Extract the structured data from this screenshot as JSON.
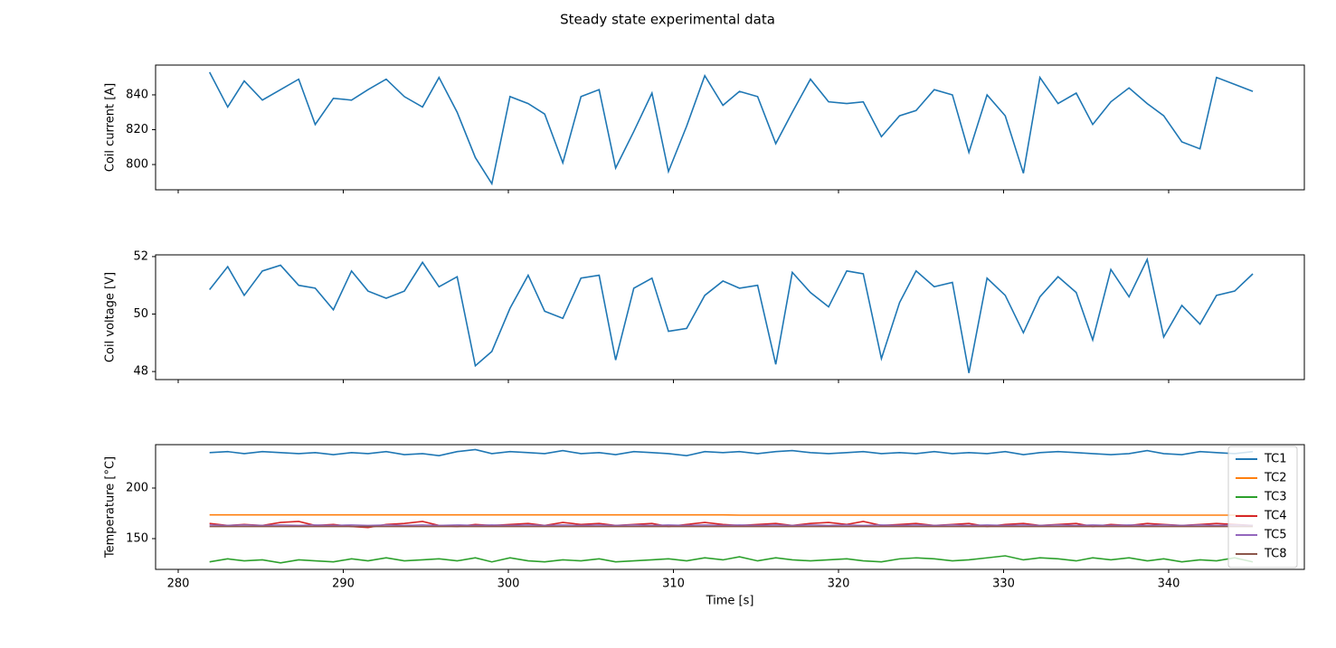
{
  "title": "Steady state experimental data",
  "chart_data": [
    {
      "type": "line",
      "ylabel": "Coil current [A]",
      "xticklabels": false,
      "x": [
        281.9,
        283.0,
        284.0,
        285.1,
        286.2,
        287.3,
        288.3,
        289.4,
        290.5,
        291.5,
        292.6,
        293.7,
        294.8,
        295.8,
        296.9,
        298.0,
        299.0,
        300.1,
        301.2,
        302.2,
        303.3,
        304.4,
        305.5,
        306.5,
        307.6,
        308.7,
        309.7,
        310.8,
        311.9,
        313.0,
        314.0,
        315.1,
        316.2,
        317.2,
        318.3,
        319.4,
        320.5,
        321.5,
        322.6,
        323.7,
        324.7,
        325.8,
        326.9,
        327.9,
        329.0,
        330.1,
        331.2,
        332.2,
        333.3,
        334.4,
        335.4,
        336.5,
        337.6,
        338.7,
        339.7,
        340.8,
        341.9,
        342.9,
        344.0,
        345.1
      ],
      "series": [
        {
          "name": "Coil current",
          "color": "#1f77b4",
          "values": [
            853,
            833,
            848,
            837,
            843,
            849,
            823,
            838,
            837,
            843,
            849,
            839,
            833,
            850,
            830,
            804,
            789,
            839,
            835,
            829,
            801,
            839,
            843,
            798,
            819,
            841,
            796,
            822,
            851,
            834,
            842,
            839,
            812,
            830,
            849,
            836,
            835,
            836,
            816,
            828,
            831,
            843,
            840,
            807,
            840,
            828,
            795,
            850,
            835,
            841,
            823,
            836,
            844,
            835,
            828,
            813,
            809,
            850,
            846,
            842
          ]
        }
      ],
      "xlim": [
        278.63,
        348.22
      ],
      "xticks": [
        280,
        290,
        300,
        310,
        320,
        330,
        340
      ],
      "ylim": [
        785.5,
        857.1
      ],
      "yticks": [
        800,
        820,
        840
      ]
    },
    {
      "type": "line",
      "ylabel": "Coil voltage [V]",
      "xticklabels": false,
      "x": [
        281.9,
        283.0,
        284.0,
        285.1,
        286.2,
        287.3,
        288.3,
        289.4,
        290.5,
        291.5,
        292.6,
        293.7,
        294.8,
        295.8,
        296.9,
        298.0,
        299.0,
        300.1,
        301.2,
        302.2,
        303.3,
        304.4,
        305.5,
        306.5,
        307.6,
        308.7,
        309.7,
        310.8,
        311.9,
        313.0,
        314.0,
        315.1,
        316.2,
        317.2,
        318.3,
        319.4,
        320.5,
        321.5,
        322.6,
        323.7,
        324.7,
        325.8,
        326.9,
        327.9,
        329.0,
        330.1,
        331.2,
        332.2,
        333.3,
        334.4,
        335.4,
        336.5,
        337.6,
        338.7,
        339.7,
        340.8,
        341.9,
        342.9,
        344.0,
        345.1
      ],
      "series": [
        {
          "name": "Coil voltage",
          "color": "#1f77b4",
          "values": [
            50.85,
            51.65,
            50.65,
            51.5,
            51.7,
            51.0,
            50.9,
            50.15,
            51.5,
            50.8,
            50.55,
            50.8,
            51.8,
            50.95,
            51.3,
            48.2,
            48.7,
            50.2,
            51.35,
            50.1,
            49.85,
            51.25,
            51.35,
            48.4,
            50.9,
            51.25,
            49.4,
            49.5,
            50.65,
            51.15,
            50.9,
            51.0,
            48.25,
            51.45,
            50.75,
            50.25,
            51.5,
            51.4,
            48.45,
            50.4,
            51.5,
            50.95,
            51.1,
            47.95,
            51.25,
            50.65,
            49.35,
            50.6,
            51.3,
            50.75,
            49.1,
            51.55,
            50.6,
            51.9,
            49.2,
            50.3,
            49.65,
            50.65,
            50.8,
            51.4
          ]
        }
      ],
      "xlim": [
        278.63,
        348.22
      ],
      "xticks": [
        280,
        290,
        300,
        310,
        320,
        330,
        340
      ],
      "ylim": [
        47.72,
        52.06
      ],
      "yticks": [
        48,
        50,
        52
      ]
    },
    {
      "type": "line",
      "ylabel": "Temperature [°C]",
      "xlabel": "Time [s]",
      "xticklabels": true,
      "legend": "center right",
      "x": [
        281.9,
        283.0,
        284.0,
        285.1,
        286.2,
        287.3,
        288.3,
        289.4,
        290.5,
        291.5,
        292.6,
        293.7,
        294.8,
        295.8,
        296.9,
        298.0,
        299.0,
        300.1,
        301.2,
        302.2,
        303.3,
        304.4,
        305.5,
        306.5,
        307.6,
        308.7,
        309.7,
        310.8,
        311.9,
        313.0,
        314.0,
        315.1,
        316.2,
        317.2,
        318.3,
        319.4,
        320.5,
        321.5,
        322.6,
        323.7,
        324.7,
        325.8,
        326.9,
        327.9,
        329.0,
        330.1,
        331.2,
        332.2,
        333.3,
        334.4,
        335.4,
        336.5,
        337.6,
        338.7,
        339.7,
        340.8,
        341.9,
        342.9,
        344.0,
        345.1
      ],
      "series": [
        {
          "name": "TC1",
          "color": "#1f77b4",
          "values": [
            235,
            236,
            234,
            236,
            235,
            234,
            235,
            233,
            235,
            234,
            236,
            233,
            234,
            232,
            236,
            238,
            234,
            236,
            235,
            234,
            237,
            234,
            235,
            233,
            236,
            235,
            234,
            232,
            236,
            235,
            236,
            234,
            236,
            237,
            235,
            234,
            235,
            236,
            234,
            235,
            234,
            236,
            234,
            235,
            234,
            236,
            233,
            235,
            236,
            235,
            234,
            233,
            234,
            237,
            234,
            233,
            236,
            235,
            234,
            236
          ]
        },
        {
          "name": "TC2",
          "color": "#ff7f0e",
          "values": [
            173.5,
            173.5,
            173.5,
            173.5,
            173.5,
            173.5,
            173.5,
            173.5,
            173.5,
            173.5,
            173.5,
            173.5,
            173.5,
            173.5,
            173.5,
            173.5,
            173.5,
            173.5,
            173.5,
            173.5,
            173.5,
            173.5,
            173.5,
            173.5,
            173.5,
            173.5,
            173.5,
            173.5,
            173.5,
            173.5,
            173.2,
            173.2,
            173.2,
            173.2,
            173.2,
            173.2,
            173.2,
            173.2,
            173.2,
            173.2,
            173.2,
            173.2,
            173.2,
            173.2,
            173.2,
            173.2,
            173.2,
            173.2,
            173.2,
            173.2,
            173.2,
            173.2,
            173.2,
            173.2,
            173.2,
            173.2,
            173.2,
            173.2,
            173.2,
            173.2
          ]
        },
        {
          "name": "TC3",
          "color": "#2ca02c",
          "values": [
            127,
            130,
            128,
            129,
            126,
            129,
            128,
            127,
            130,
            128,
            131,
            128,
            129,
            130,
            128,
            131,
            127,
            131,
            128,
            127,
            129,
            128,
            130,
            127,
            128,
            129,
            130,
            128,
            131,
            129,
            132,
            128,
            131,
            129,
            128,
            129,
            130,
            128,
            127,
            130,
            131,
            130,
            128,
            129,
            131,
            133,
            129,
            131,
            130,
            128,
            131,
            129,
            131,
            128,
            130,
            127,
            129,
            128,
            131,
            127
          ]
        },
        {
          "name": "TC4",
          "color": "#d62728",
          "values": [
            165,
            163,
            164,
            163,
            166,
            167,
            163,
            164,
            162,
            161,
            164,
            165,
            167,
            163,
            162,
            164,
            163,
            164,
            165,
            163,
            166,
            164,
            165,
            163,
            164,
            165,
            162,
            164,
            166,
            164,
            163,
            164,
            165,
            163,
            165,
            166,
            164,
            167,
            163,
            164,
            165,
            163,
            164,
            165,
            162,
            164,
            165,
            163,
            164,
            165,
            162,
            164,
            163,
            165,
            164,
            163,
            164,
            165,
            164,
            163
          ]
        },
        {
          "name": "TC5",
          "color": "#9467bd",
          "values": [
            163.5,
            163,
            163.5,
            163,
            163.5,
            163,
            163.5,
            163,
            163.5,
            163,
            163.5,
            163,
            163.5,
            163,
            163.5,
            163,
            163.5,
            163,
            163.5,
            163,
            163.5,
            163,
            163.5,
            163,
            163.5,
            163,
            163.5,
            163,
            163.5,
            163,
            163.5,
            163,
            163.5,
            163,
            163.5,
            163,
            163.5,
            163,
            163.5,
            163,
            163.5,
            163,
            163.5,
            163,
            163.5,
            163,
            163.5,
            163,
            163.5,
            163,
            163.5,
            163,
            163.5,
            163,
            163.5,
            163,
            163.5,
            163,
            163.5,
            163
          ]
        },
        {
          "name": "TC8",
          "color": "#8c564b",
          "values": [
            162,
            162,
            162,
            162,
            162,
            162,
            162,
            162,
            162,
            162,
            162,
            162,
            162,
            162,
            162,
            162,
            162,
            162,
            162,
            162,
            162,
            162,
            162,
            162,
            162,
            162,
            162,
            162,
            162,
            162,
            162,
            162,
            162,
            162,
            162,
            162,
            162,
            162,
            162,
            162,
            162,
            162,
            162,
            162,
            162,
            162,
            162,
            162,
            162,
            162,
            162,
            162,
            162,
            162,
            162,
            162,
            162,
            162,
            162,
            162
          ]
        }
      ],
      "xlim": [
        278.63,
        348.22
      ],
      "xticks": [
        280,
        290,
        300,
        310,
        320,
        330,
        340
      ],
      "ylim": [
        119.6,
        242.9
      ],
      "yticks": [
        150,
        200
      ]
    }
  ]
}
